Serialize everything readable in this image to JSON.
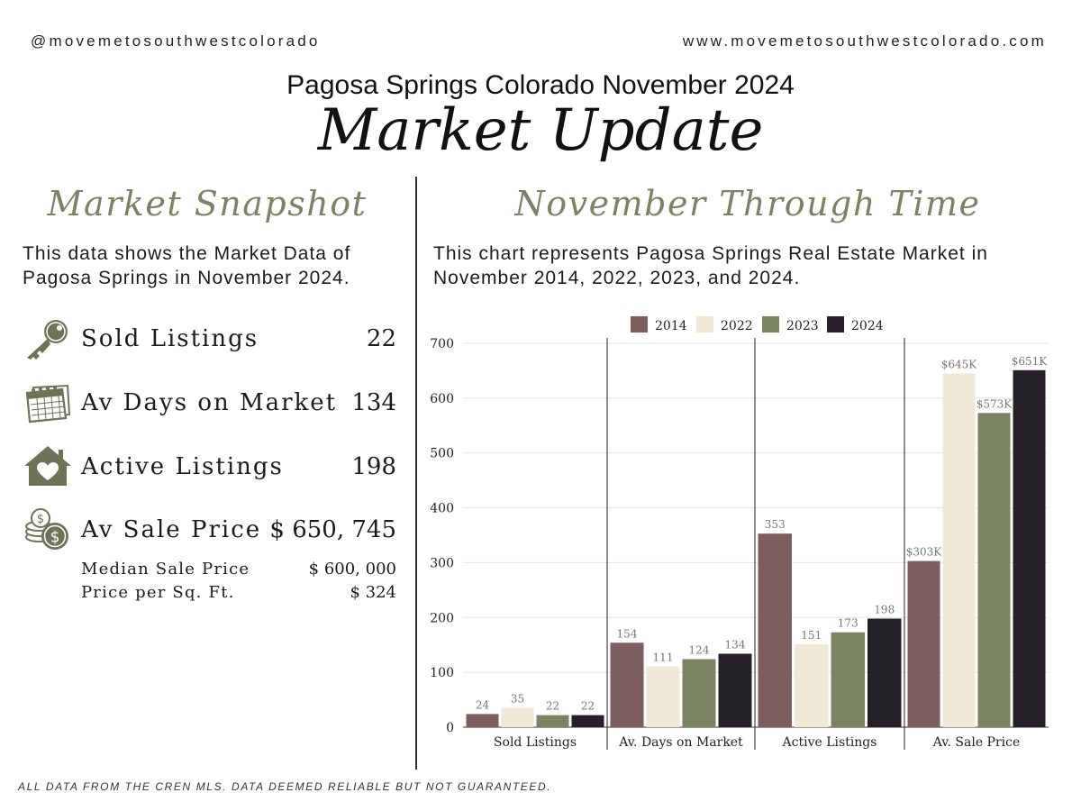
{
  "header": {
    "handle": "@movemetosouthwestcolorado",
    "website": "www.movemetosouthwestcolorado.com",
    "subtitle": "Pagosa Springs Colorado November 2024",
    "title": "Market Update"
  },
  "snapshot": {
    "title": "Market Snapshot",
    "description": "This data shows the Market Data of Pagosa Springs in November 2024.",
    "stats": [
      {
        "icon": "key-icon",
        "label": "Sold Listings",
        "value": "22"
      },
      {
        "icon": "calendar-icon",
        "label": "Av Days on Market",
        "value": "134"
      },
      {
        "icon": "house-heart-icon",
        "label": "Active Listings",
        "value": "198"
      },
      {
        "icon": "coins-dollar-icon",
        "label": "Av Sale Price",
        "value": "$ 650, 745"
      }
    ],
    "substats": [
      {
        "label": "Median Sale Price",
        "value": "$ 600, 000"
      },
      {
        "label": "Price per Sq. Ft.",
        "value": "$ 324"
      }
    ]
  },
  "through_time": {
    "title": "November Through Time",
    "description": "This chart represents Pagosa Springs Real Estate Market in November 2014, 2022, 2023, and 2024."
  },
  "chart_data": {
    "type": "bar",
    "categories": [
      "Sold Listings",
      "Av. Days on Market",
      "Active Listings",
      "Av. Sale Price"
    ],
    "series": [
      {
        "name": "2014",
        "color": "#7e5d5f",
        "values": [
          24,
          154,
          353,
          303
        ],
        "labels": [
          "24",
          "154",
          "353",
          "$303K"
        ]
      },
      {
        "name": "2022",
        "color": "#f0e9d8",
        "values": [
          35,
          111,
          151,
          645
        ],
        "labels": [
          "35",
          "111",
          "151",
          "$645K"
        ]
      },
      {
        "name": "2023",
        "color": "#7a8462",
        "values": [
          22,
          124,
          173,
          573
        ],
        "labels": [
          "22",
          "124",
          "173",
          "$573K"
        ]
      },
      {
        "name": "2024",
        "color": "#242226",
        "values": [
          22,
          134,
          198,
          651
        ],
        "labels": [
          "22",
          "134",
          "198",
          "$651K"
        ]
      }
    ],
    "ylim": [
      0,
      700
    ],
    "yticks": [
      "0",
      "100",
      "200",
      "300",
      "400",
      "500",
      "600",
      "700"
    ],
    "grid": true,
    "legend": "top"
  },
  "footer": "ALL DATA FROM THE CREN MLS. DATA DEEMED RELIABLE BUT NOT GUARANTEED.",
  "colors": {
    "accent": "#7a8363",
    "text": "#1b1b1b",
    "icon": "#6b7457"
  }
}
